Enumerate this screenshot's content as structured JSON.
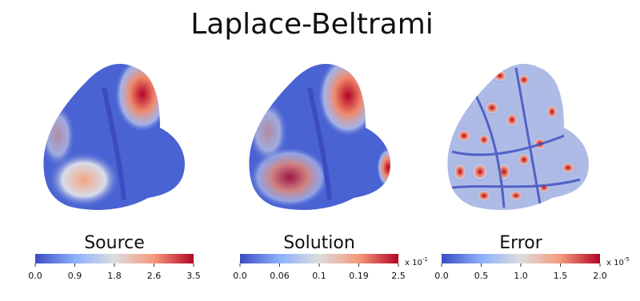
{
  "title": "Laplace-Beltrami",
  "panels": [
    {
      "label": "Source",
      "ticks": [
        "0.0",
        "0.9",
        "1.8",
        "2.6",
        "3.5"
      ]
    },
    {
      "label": "Solution",
      "ticks": [
        "0.0",
        "0.06",
        "0.1",
        "0.19",
        "2.5"
      ],
      "scale": {
        "base": "x 10",
        "power": "-1"
      }
    },
    {
      "label": "Error",
      "ticks": [
        "0.0",
        "0.5",
        "1.0",
        "1.5",
        "2.0"
      ],
      "scale": {
        "base": "x 10",
        "power": "-5"
      }
    }
  ]
}
